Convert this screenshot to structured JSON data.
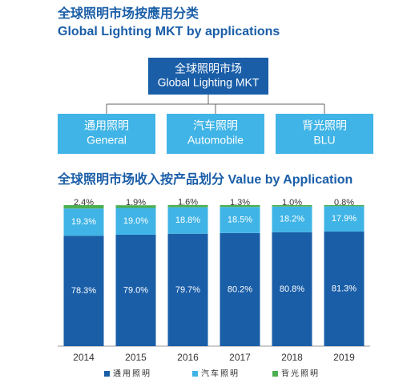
{
  "header": {
    "title_zh": "全球照明市场按應用分类",
    "title_en": "Global Lighting MKT by applications"
  },
  "diagram": {
    "root": {
      "label_zh": "全球照明市场",
      "label_en": "Global Lighting MKT"
    },
    "nodes": [
      {
        "label_zh": "通用照明",
        "label_en": "General"
      },
      {
        "label_zh": "汽车照明",
        "label_en": "Automobile"
      },
      {
        "label_zh": "背光照明",
        "label_en": "BLU"
      }
    ]
  },
  "chart_data": {
    "type": "bar",
    "stacked": true,
    "title": "全球照明市场收入按产品划分 Value by Application",
    "categories": [
      "2014",
      "2015",
      "2016",
      "2017",
      "2018",
      "2019"
    ],
    "series": [
      {
        "name": "通用照明",
        "color": "#1a5ea8",
        "values": [
          78.3,
          79.0,
          79.7,
          80.2,
          80.8,
          81.3
        ],
        "value_labels": [
          "78.3%",
          "79.0%",
          "79.7%",
          "80.2%",
          "80.8%",
          "81.3%"
        ]
      },
      {
        "name": "汽车照明",
        "color": "#40b4e6",
        "values": [
          19.3,
          19.0,
          18.8,
          18.5,
          18.2,
          17.9
        ],
        "value_labels": [
          "19.3%",
          "19.0%",
          "18.8%",
          "18.5%",
          "18.2%",
          "17.9%"
        ]
      },
      {
        "name": "背光照明",
        "color": "#4caf50",
        "values": [
          2.4,
          1.9,
          1.6,
          1.3,
          1.0,
          0.8
        ],
        "value_labels": [
          "2.4%",
          "1.9%",
          "1.6%",
          "1.3%",
          "1.0%",
          "0.8%"
        ]
      }
    ],
    "ylim": [
      0,
      100
    ]
  }
}
